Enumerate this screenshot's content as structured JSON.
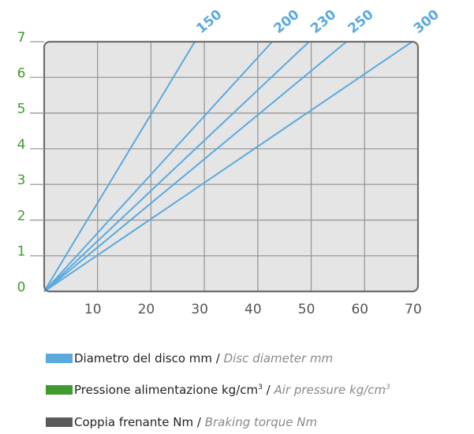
{
  "chart_data": {
    "type": "line",
    "x_ticks": [
      10,
      20,
      30,
      40,
      50,
      60,
      70
    ],
    "y_ticks": [
      0,
      1,
      2,
      3,
      4,
      5,
      6,
      7
    ],
    "xlim": [
      0,
      70
    ],
    "ylim": [
      0,
      7
    ],
    "grid": true,
    "series": [
      {
        "name": "150",
        "points": [
          [
            0,
            0
          ],
          [
            28.2,
            7
          ]
        ]
      },
      {
        "name": "200",
        "points": [
          [
            0,
            0
          ],
          [
            42.7,
            7
          ]
        ]
      },
      {
        "name": "230",
        "points": [
          [
            0,
            0
          ],
          [
            49.6,
            7
          ]
        ]
      },
      {
        "name": "250",
        "points": [
          [
            0,
            0
          ],
          [
            56.6,
            7
          ]
        ]
      },
      {
        "name": "300",
        "points": [
          [
            0,
            0
          ],
          [
            68.9,
            7
          ]
        ]
      }
    ],
    "colors": {
      "line": "#5aaadf",
      "y_tick": "#3f9b2e",
      "x_tick": "#555555",
      "grid": "#999999",
      "plot_bg": "#e5e5e5",
      "frame": "#6e6e6e"
    }
  },
  "legend": [
    {
      "color": "#5aaadf",
      "label": "Diametro del disco mm",
      "sep": " / ",
      "label_en": "Disc diameter mm",
      "sup": ""
    },
    {
      "color": "#3f9b2e",
      "label": "Pressione alimentazione kg/cm",
      "sup": "3",
      "sep": " / ",
      "label_en": "Air pressure kg/cm",
      "sup_en": "3"
    },
    {
      "color": "#5a5a5a",
      "label": "Coppia frenante Nm",
      "sep": " / ",
      "label_en": "Braking torque Nm",
      "sup": ""
    }
  ]
}
